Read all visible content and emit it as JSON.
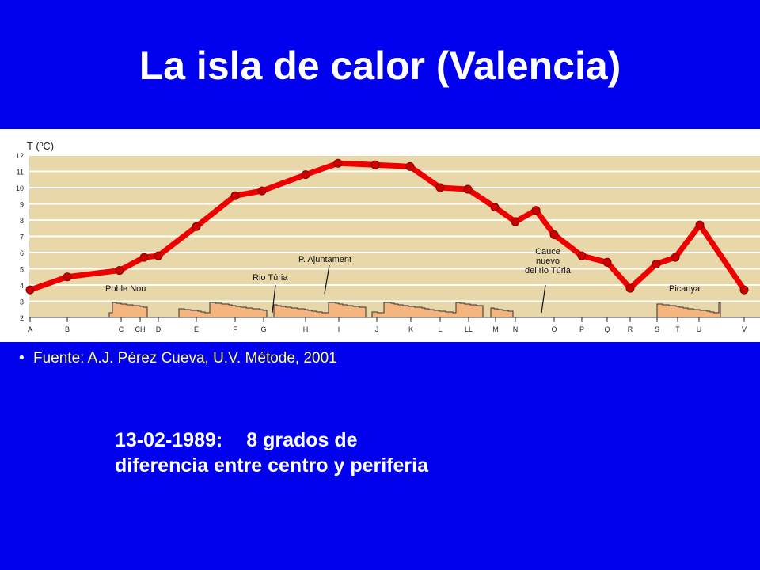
{
  "slide": {
    "title": "La isla de calor (Valencia)",
    "source": "Fuente: A.J. Pérez Cueva, U.V. Métode, 2001",
    "note_date": "13-02-1989:",
    "note_line1": "8 grados de",
    "note_line2": "diferencia entre centro y periferia"
  },
  "colors": {
    "background": "#0000ee",
    "plot_area": "#e8d7a9",
    "grid": "#ffffff",
    "line": "#ee0000",
    "marker": "#cc0000",
    "buildings": "#f5b57f",
    "source_text": "#ffff66"
  },
  "chart_data": {
    "type": "line",
    "ylabel": "T (ºC)",
    "ylim": [
      2,
      12
    ],
    "yticks": [
      2,
      3,
      4,
      5,
      6,
      7,
      8,
      9,
      10,
      11,
      12
    ],
    "grid": true,
    "x_labels": [
      "A",
      "B",
      "C",
      "CH",
      "D",
      "E",
      "F",
      "G",
      "H",
      "I",
      "J",
      "K",
      "L",
      "LL",
      "M",
      "N",
      "O",
      "P",
      "Q",
      "R",
      "S",
      "T",
      "U",
      "V"
    ],
    "series": [
      {
        "points": [
          {
            "x": "A",
            "y": 3.7
          },
          {
            "x": "B",
            "y": 4.5
          },
          {
            "x": "C",
            "y": 4.9
          },
          {
            "x": "CH",
            "y": 5.7
          },
          {
            "x": "D",
            "y": 5.8
          },
          {
            "x": "E",
            "y": 7.6
          },
          {
            "x": "F",
            "y": 9.5
          },
          {
            "x": "G",
            "y": 9.8
          },
          {
            "x": "H",
            "y": 10.8
          },
          {
            "x": "I",
            "y": 11.5
          },
          {
            "x": "J",
            "y": 11.4
          },
          {
            "x": "K",
            "y": 11.3
          },
          {
            "x": "L",
            "y": 10.0
          },
          {
            "x": "LL",
            "y": 9.9
          },
          {
            "x": "M",
            "y": 8.8
          },
          {
            "x": "",
            "y": 7.9
          },
          {
            "x": "N",
            "y": 8.6
          },
          {
            "x": "",
            "y": 7.1
          },
          {
            "x": "O",
            "y": 5.8
          },
          {
            "x": "P",
            "y": 5.4
          },
          {
            "x": "Q",
            "y": 3.8
          },
          {
            "x": "R",
            "y": 5.3
          },
          {
            "x": "S",
            "y": 5.7
          },
          {
            "x": "T",
            "y": 7.7
          },
          {
            "x": "U",
            "y": 3.7
          }
        ]
      }
    ],
    "annotations": [
      "Poble Nou",
      "Rio Túria",
      "P. Ajuntament",
      "Cauce nuevo del rio Túria",
      "Picanya"
    ]
  }
}
